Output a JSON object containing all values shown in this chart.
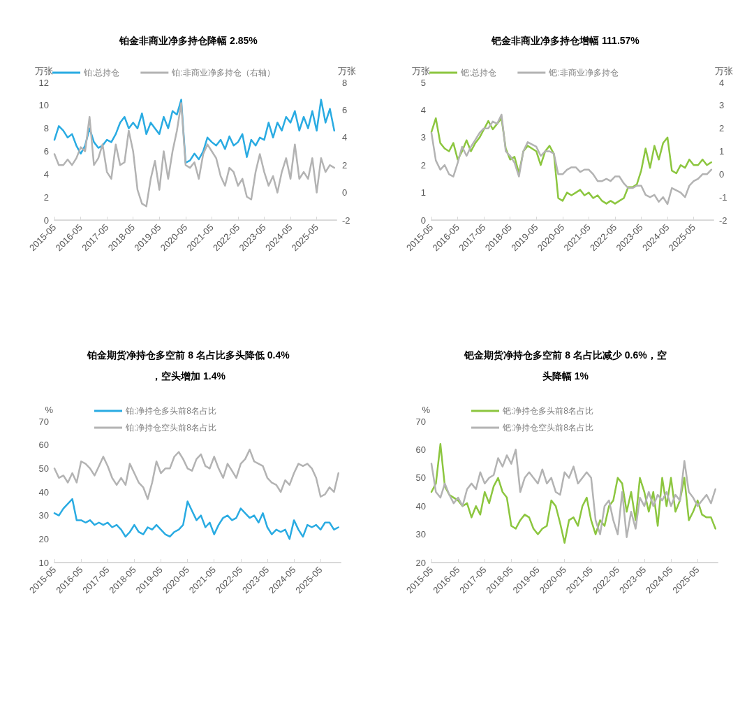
{
  "chart_data": [
    {
      "type": "line",
      "title": "铂金非商业净多持仓降幅 2.85%",
      "ylabel": "万张",
      "y2label": "万张",
      "legend": "top",
      "marker": "none",
      "x": [
        "2015-05",
        "2015-07",
        "2015-09",
        "2015-11",
        "2016-01",
        "2016-03",
        "2016-05",
        "2016-07",
        "2016-09",
        "2016-11",
        "2017-01",
        "2017-03",
        "2017-05",
        "2017-07",
        "2017-09",
        "2017-11",
        "2018-01",
        "2018-03",
        "2018-05",
        "2018-07",
        "2018-09",
        "2018-11",
        "2019-01",
        "2019-03",
        "2019-05",
        "2019-07",
        "2019-09",
        "2019-11",
        "2020-01",
        "2020-03",
        "2020-05",
        "2020-07",
        "2020-09",
        "2020-11",
        "2021-01",
        "2021-03",
        "2021-05",
        "2021-07",
        "2021-09",
        "2021-11",
        "2022-01",
        "2022-03",
        "2022-05",
        "2022-07",
        "2022-09",
        "2022-11",
        "2023-01",
        "2023-03",
        "2023-05",
        "2023-07",
        "2023-09",
        "2023-11",
        "2024-01",
        "2024-03",
        "2024-05",
        "2024-07",
        "2024-09",
        "2024-11",
        "2025-01",
        "2025-03",
        "2025-05",
        "2025-07",
        "2025-09",
        "2025-11",
        "2026-01"
      ],
      "xlim": [
        "2015-05",
        "2026-02"
      ],
      "xticks": [
        "2015-05",
        "2016-05",
        "2017-05",
        "2018-05",
        "2019-05",
        "2020-05",
        "2021-05",
        "2022-05",
        "2023-05",
        "2024-05",
        "2025-05"
      ],
      "ylim": [
        0,
        12
      ],
      "yticks": [
        0,
        2,
        4,
        6,
        8,
        10,
        12
      ],
      "y2lim": [
        -2,
        8
      ],
      "y2ticks": [
        -2,
        0,
        2,
        4,
        6,
        8
      ],
      "series": [
        {
          "name": "铂:总持仓",
          "color": "#29abe2",
          "values": [
            7,
            8.2,
            7.8,
            7.2,
            7.5,
            6.5,
            5.8,
            6.5,
            8,
            6.8,
            6.3,
            6.5,
            7,
            6.8,
            7.5,
            8.5,
            9,
            8,
            8.5,
            8,
            9.3,
            7.5,
            8.5,
            8,
            7.5,
            9,
            8,
            9.5,
            9.2,
            10.5,
            5,
            5.2,
            5.8,
            5.3,
            6,
            7.2,
            6.8,
            6.5,
            7,
            6.2,
            7.3,
            6.5,
            6.8,
            7.5,
            5.5,
            7,
            6.5,
            7.2,
            7,
            8.5,
            7.2,
            8.5,
            7.8,
            9,
            8.5,
            9.5,
            7.8,
            9,
            8,
            9.5,
            7.8,
            10.5,
            8.5,
            9.7,
            7.8
          ]
        },
        {
          "name": "铂:非商业净多持仓（右轴）",
          "color": "#b3b3b3",
          "axis": "y2",
          "values": [
            2.8,
            2,
            2,
            2.4,
            2,
            2.5,
            3.3,
            3,
            5.5,
            2,
            2.5,
            3.5,
            1.5,
            1,
            3.5,
            2,
            2.2,
            4.5,
            3,
            0.2,
            -0.8,
            -1,
            1,
            2.3,
            0.2,
            3,
            1,
            3,
            4.5,
            6.5,
            2,
            1.8,
            2.2,
            1,
            2.8,
            3.5,
            3,
            2.5,
            1.2,
            0.5,
            1.8,
            1.5,
            0.5,
            1,
            -0.3,
            -0.5,
            1.5,
            2.8,
            1.5,
            0.5,
            1.2,
            0,
            1.5,
            2.5,
            1,
            3.5,
            1,
            1.5,
            1,
            2.5,
            0,
            2.5,
            1.5,
            2,
            1.8
          ]
        }
      ]
    },
    {
      "type": "line",
      "title": "钯金非商业净多持仓增幅 111.57%",
      "ylabel": "万张",
      "y2label": "万张",
      "legend": "top",
      "marker": "none",
      "x": [
        "2015-05",
        "2015-07",
        "2015-09",
        "2015-11",
        "2016-01",
        "2016-03",
        "2016-05",
        "2016-07",
        "2016-09",
        "2016-11",
        "2017-01",
        "2017-03",
        "2017-05",
        "2017-07",
        "2017-09",
        "2017-11",
        "2018-01",
        "2018-03",
        "2018-05",
        "2018-07",
        "2018-09",
        "2018-11",
        "2019-01",
        "2019-03",
        "2019-05",
        "2019-07",
        "2019-09",
        "2019-11",
        "2020-01",
        "2020-03",
        "2020-05",
        "2020-07",
        "2020-09",
        "2020-11",
        "2021-01",
        "2021-03",
        "2021-05",
        "2021-07",
        "2021-09",
        "2021-11",
        "2022-01",
        "2022-03",
        "2022-05",
        "2022-07",
        "2022-09",
        "2022-11",
        "2023-01",
        "2023-03",
        "2023-05",
        "2023-07",
        "2023-09",
        "2023-11",
        "2024-01",
        "2024-03",
        "2024-05",
        "2024-07",
        "2024-09",
        "2024-11",
        "2025-01",
        "2025-03",
        "2025-05",
        "2025-07",
        "2025-09",
        "2025-11",
        "2026-01"
      ],
      "xlim": [
        "2015-05",
        "2026-02"
      ],
      "xticks": [
        "2015-05",
        "2016-05",
        "2017-05",
        "2018-05",
        "2019-05",
        "2020-05",
        "2021-05",
        "2022-05",
        "2023-05",
        "2024-05",
        "2025-05"
      ],
      "ylim": [
        0,
        5
      ],
      "yticks": [
        0,
        1,
        2,
        3,
        4,
        5
      ],
      "y2lim": [
        -2,
        4
      ],
      "y2ticks": [
        -2,
        -1,
        0,
        1,
        2,
        3,
        4
      ],
      "series": [
        {
          "name": "钯:总持仓",
          "color": "#8cc63f",
          "values": [
            3.2,
            3.7,
            2.8,
            2.6,
            2.5,
            2.8,
            2.2,
            2.5,
            2.9,
            2.5,
            2.8,
            3,
            3.3,
            3.6,
            3.3,
            3.5,
            3.7,
            2.6,
            2.2,
            2.3,
            1.7,
            2.5,
            2.7,
            2.6,
            2.5,
            2,
            2.5,
            2.7,
            2.4,
            0.8,
            0.7,
            1,
            0.9,
            1,
            1.1,
            0.9,
            1,
            0.8,
            0.9,
            0.7,
            0.6,
            0.7,
            0.6,
            0.7,
            0.8,
            1.2,
            1.2,
            1.3,
            1.8,
            2.6,
            1.9,
            2.7,
            2.2,
            2.8,
            3,
            1.8,
            1.7,
            2,
            1.9,
            2.2,
            2,
            2,
            2.2,
            2,
            2.1
          ]
        },
        {
          "name": "钯:非商业净多持仓",
          "color": "#b3b3b3",
          "axis": "y2",
          "values": [
            1.8,
            0.6,
            0.2,
            0.4,
            0,
            -0.1,
            0.5,
            1.2,
            0.8,
            1.2,
            1.5,
            1.8,
            2,
            2,
            2.3,
            2.2,
            2.6,
            1,
            0.8,
            0.5,
            -0.1,
            1,
            1.4,
            1.3,
            1.2,
            0.8,
            1,
            1,
            0.9,
            0,
            0,
            0.2,
            0.3,
            0.3,
            0.1,
            0.2,
            0.2,
            0,
            -0.3,
            -0.3,
            -0.2,
            -0.3,
            -0.1,
            -0.1,
            -0.4,
            -0.6,
            -0.6,
            -0.5,
            -0.5,
            -0.9,
            -1,
            -0.9,
            -1.2,
            -1,
            -1.3,
            -0.6,
            -0.7,
            -0.8,
            -1,
            -0.5,
            -0.3,
            -0.2,
            0,
            0,
            0.2
          ]
        }
      ]
    },
    {
      "type": "line",
      "title": "铂金期货净持仓多空前 8 名占比多头降低 0.4%，空头增加 1.4%",
      "ylabel": "%",
      "legend": "top",
      "marker": "none",
      "x": [
        "2015-05",
        "2015-07",
        "2015-09",
        "2015-11",
        "2016-01",
        "2016-03",
        "2016-05",
        "2016-07",
        "2016-09",
        "2016-11",
        "2017-01",
        "2017-03",
        "2017-05",
        "2017-07",
        "2017-09",
        "2017-11",
        "2018-01",
        "2018-03",
        "2018-05",
        "2018-07",
        "2018-09",
        "2018-11",
        "2019-01",
        "2019-03",
        "2019-05",
        "2019-07",
        "2019-09",
        "2019-11",
        "2020-01",
        "2020-03",
        "2020-05",
        "2020-07",
        "2020-09",
        "2020-11",
        "2021-01",
        "2021-03",
        "2021-05",
        "2021-07",
        "2021-09",
        "2021-11",
        "2022-01",
        "2022-03",
        "2022-05",
        "2022-07",
        "2022-09",
        "2022-11",
        "2023-01",
        "2023-03",
        "2023-05",
        "2023-07",
        "2023-09",
        "2023-11",
        "2024-01",
        "2024-03",
        "2024-05",
        "2024-07",
        "2024-09",
        "2024-11",
        "2025-01",
        "2025-03",
        "2025-05",
        "2025-07",
        "2025-09",
        "2025-11",
        "2026-01"
      ],
      "xlim": [
        "2015-05",
        "2026-02"
      ],
      "xticks": [
        "2015-05",
        "2016-05",
        "2017-05",
        "2018-05",
        "2019-05",
        "2020-05",
        "2021-05",
        "2022-05",
        "2023-05",
        "2024-05",
        "2025-05"
      ],
      "ylim": [
        10,
        70
      ],
      "yticks": [
        10,
        20,
        30,
        40,
        50,
        60,
        70
      ],
      "series": [
        {
          "name": "铂:净持仓多头前8名占比",
          "color": "#29abe2",
          "values": [
            31,
            30,
            33,
            35,
            37,
            28,
            28,
            27,
            28,
            26,
            27,
            26,
            27,
            25,
            26,
            24,
            21,
            23,
            26,
            23,
            22,
            25,
            24,
            26,
            24,
            22,
            21,
            23,
            24,
            26,
            36,
            32,
            28,
            30,
            25,
            27,
            22,
            26,
            29,
            30,
            28,
            29,
            33,
            31,
            29,
            30,
            27,
            31,
            25,
            22,
            24,
            23,
            24,
            20,
            28,
            24,
            21,
            26,
            25,
            26,
            24,
            27,
            27,
            24,
            25
          ]
        },
        {
          "name": "铂:净持仓空头前8名占比",
          "color": "#b3b3b3",
          "values": [
            50,
            46,
            47,
            44,
            48,
            44,
            53,
            52,
            50,
            47,
            51,
            55,
            51,
            46,
            43,
            46,
            43,
            52,
            48,
            44,
            42,
            37,
            44,
            53,
            48,
            50,
            50,
            55,
            57,
            54,
            50,
            49,
            54,
            56,
            51,
            50,
            55,
            50,
            46,
            52,
            49,
            46,
            52,
            54,
            58,
            53,
            52,
            51,
            46,
            44,
            43,
            40,
            45,
            43,
            48,
            52,
            51,
            52,
            50,
            46,
            38,
            39,
            42,
            40,
            48
          ]
        }
      ]
    },
    {
      "type": "line",
      "title": "钯金期货净持仓多空前 8 名占比减少 0.6%，空头降幅 1%",
      "ylabel": "%",
      "legend": "top",
      "marker": "none",
      "x": [
        "2015-05",
        "2015-07",
        "2015-09",
        "2015-11",
        "2016-01",
        "2016-03",
        "2016-05",
        "2016-07",
        "2016-09",
        "2016-11",
        "2017-01",
        "2017-03",
        "2017-05",
        "2017-07",
        "2017-09",
        "2017-11",
        "2018-01",
        "2018-03",
        "2018-05",
        "2018-07",
        "2018-09",
        "2018-11",
        "2019-01",
        "2019-03",
        "2019-05",
        "2019-07",
        "2019-09",
        "2019-11",
        "2020-01",
        "2020-03",
        "2020-05",
        "2020-07",
        "2020-09",
        "2020-11",
        "2021-01",
        "2021-03",
        "2021-05",
        "2021-07",
        "2021-09",
        "2021-11",
        "2022-01",
        "2022-03",
        "2022-05",
        "2022-07",
        "2022-09",
        "2022-11",
        "2023-01",
        "2023-03",
        "2023-05",
        "2023-07",
        "2023-09",
        "2023-11",
        "2024-01",
        "2024-03",
        "2024-05",
        "2024-07",
        "2024-09",
        "2024-11",
        "2025-01",
        "2025-03",
        "2025-05",
        "2025-07",
        "2025-09",
        "2025-11",
        "2026-01"
      ],
      "xlim": [
        "2015-05",
        "2026-02"
      ],
      "xticks": [
        "2015-05",
        "2016-05",
        "2017-05",
        "2018-05",
        "2019-05",
        "2020-05",
        "2021-05",
        "2022-05",
        "2023-05",
        "2024-05",
        "2025-05"
      ],
      "ylim": [
        20,
        70
      ],
      "yticks": [
        20,
        30,
        40,
        50,
        60,
        70
      ],
      "series": [
        {
          "name": "钯:净持仓多头前8名占比",
          "color": "#8cc63f",
          "values": [
            45,
            48,
            62,
            47,
            44,
            43,
            42,
            40,
            41,
            36,
            40,
            37,
            45,
            41,
            47,
            50,
            45,
            43,
            33,
            32,
            35,
            37,
            36,
            32,
            30,
            32,
            33,
            42,
            40,
            34,
            27,
            35,
            36,
            33,
            40,
            43,
            35,
            30,
            35,
            33,
            40,
            42,
            50,
            48,
            38,
            45,
            35,
            50,
            45,
            38,
            45,
            33,
            50,
            40,
            50,
            38,
            42,
            50,
            35,
            38,
            42,
            37,
            36,
            36,
            32
          ]
        },
        {
          "name": "钯:净持仓空头前8名占比",
          "color": "#b3b3b3",
          "values": [
            55,
            45,
            43,
            48,
            44,
            41,
            43,
            40,
            46,
            48,
            46,
            52,
            48,
            50,
            51,
            57,
            54,
            58,
            55,
            60,
            45,
            50,
            52,
            50,
            48,
            53,
            48,
            50,
            45,
            44,
            52,
            50,
            54,
            48,
            50,
            52,
            50,
            35,
            30,
            40,
            42,
            35,
            30,
            45,
            29,
            38,
            32,
            43,
            40,
            45,
            40,
            44,
            42,
            45,
            40,
            44,
            42,
            56,
            45,
            43,
            40,
            42,
            44,
            41,
            46
          ]
        }
      ]
    }
  ]
}
